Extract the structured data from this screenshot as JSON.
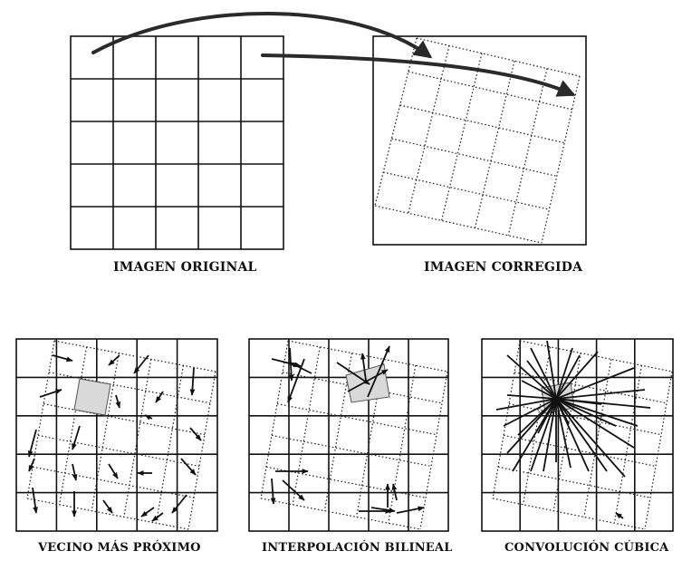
{
  "captions": {
    "original": "IMAGEN ORIGINAL",
    "corrected": "IMAGEN CORREGIDA",
    "nearest": "VECINO MÁS PRÓXIMO",
    "bilinear": "INTERPOLACIÓN BILINEAL",
    "cubic": "CONVOLUCIÓN CÚBICA"
  },
  "colors": {
    "line": "#111111",
    "shade": "#d9d9d9",
    "arrow": "#2a2a2a"
  }
}
